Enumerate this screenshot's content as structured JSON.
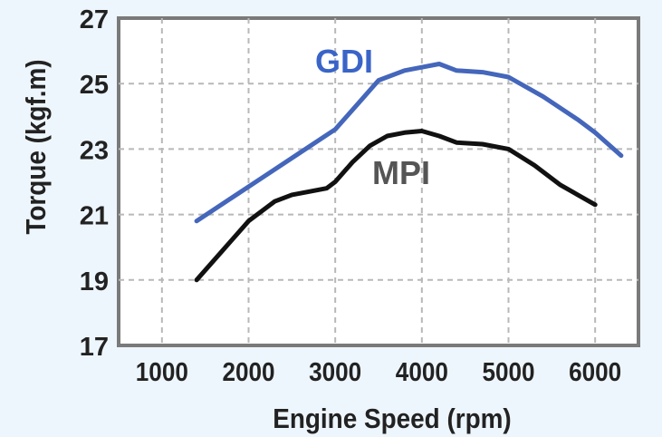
{
  "chart_data": {
    "type": "line",
    "xlabel": "Engine Speed (rpm)",
    "ylabel": "Torque (kgf.m)",
    "xlim": [
      500,
      6500
    ],
    "ylim": [
      17,
      27
    ],
    "x_ticks": [
      "1000",
      "2000",
      "3000",
      "4000",
      "5000",
      "6000"
    ],
    "y_ticks": [
      "17",
      "19",
      "21",
      "23",
      "25",
      "27"
    ],
    "grid": true,
    "series": [
      {
        "name": "GDI",
        "color": "#4466bb",
        "label_color": "#3a64c8",
        "x": [
          1400,
          1800,
          2200,
          2600,
          3000,
          3300,
          3500,
          3800,
          4000,
          4200,
          4400,
          4700,
          5000,
          5400,
          5800,
          6000,
          6300
        ],
        "y": [
          20.8,
          21.5,
          22.2,
          22.9,
          23.6,
          24.5,
          25.1,
          25.4,
          25.5,
          25.6,
          25.4,
          25.35,
          25.2,
          24.6,
          23.9,
          23.5,
          22.8
        ]
      },
      {
        "name": "MPI",
        "color": "#111111",
        "label_color": "#555555",
        "x": [
          1400,
          1700,
          2000,
          2300,
          2500,
          2700,
          2900,
          3000,
          3200,
          3400,
          3600,
          3800,
          4000,
          4200,
          4400,
          4700,
          5000,
          5300,
          5600,
          6000
        ],
        "y": [
          19.0,
          19.9,
          20.8,
          21.4,
          21.6,
          21.7,
          21.8,
          22.0,
          22.6,
          23.1,
          23.4,
          23.5,
          23.55,
          23.4,
          23.2,
          23.15,
          23.0,
          22.5,
          21.9,
          21.3
        ]
      }
    ]
  }
}
